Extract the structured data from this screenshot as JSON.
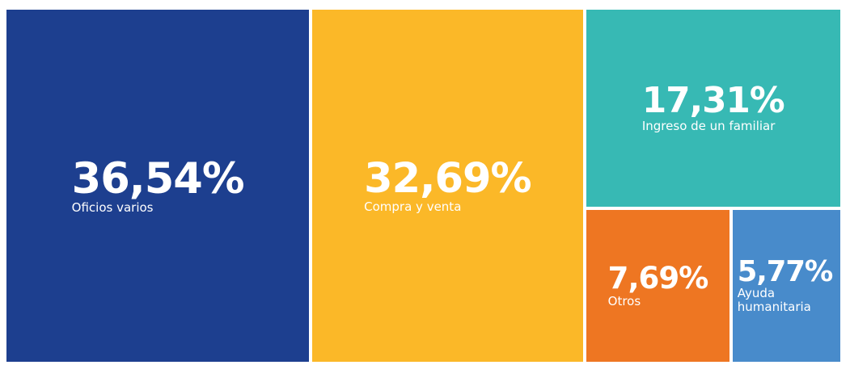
{
  "chart_data": {
    "type": "treemap",
    "categories": [
      "Oficios varios",
      "Compra y venta",
      "Ingreso de un familiar",
      "Otros",
      "Ayuda humanitaria"
    ],
    "values": [
      36.54,
      32.69,
      17.31,
      7.69,
      5.77
    ],
    "value_labels": [
      "36,54%",
      "32,69%",
      "17,31%",
      "7,69%",
      "5,77%"
    ],
    "colors": [
      "#1d3f8f",
      "#fbb828",
      "#37b9b4",
      "#ee7622",
      "#488bcb"
    ]
  }
}
